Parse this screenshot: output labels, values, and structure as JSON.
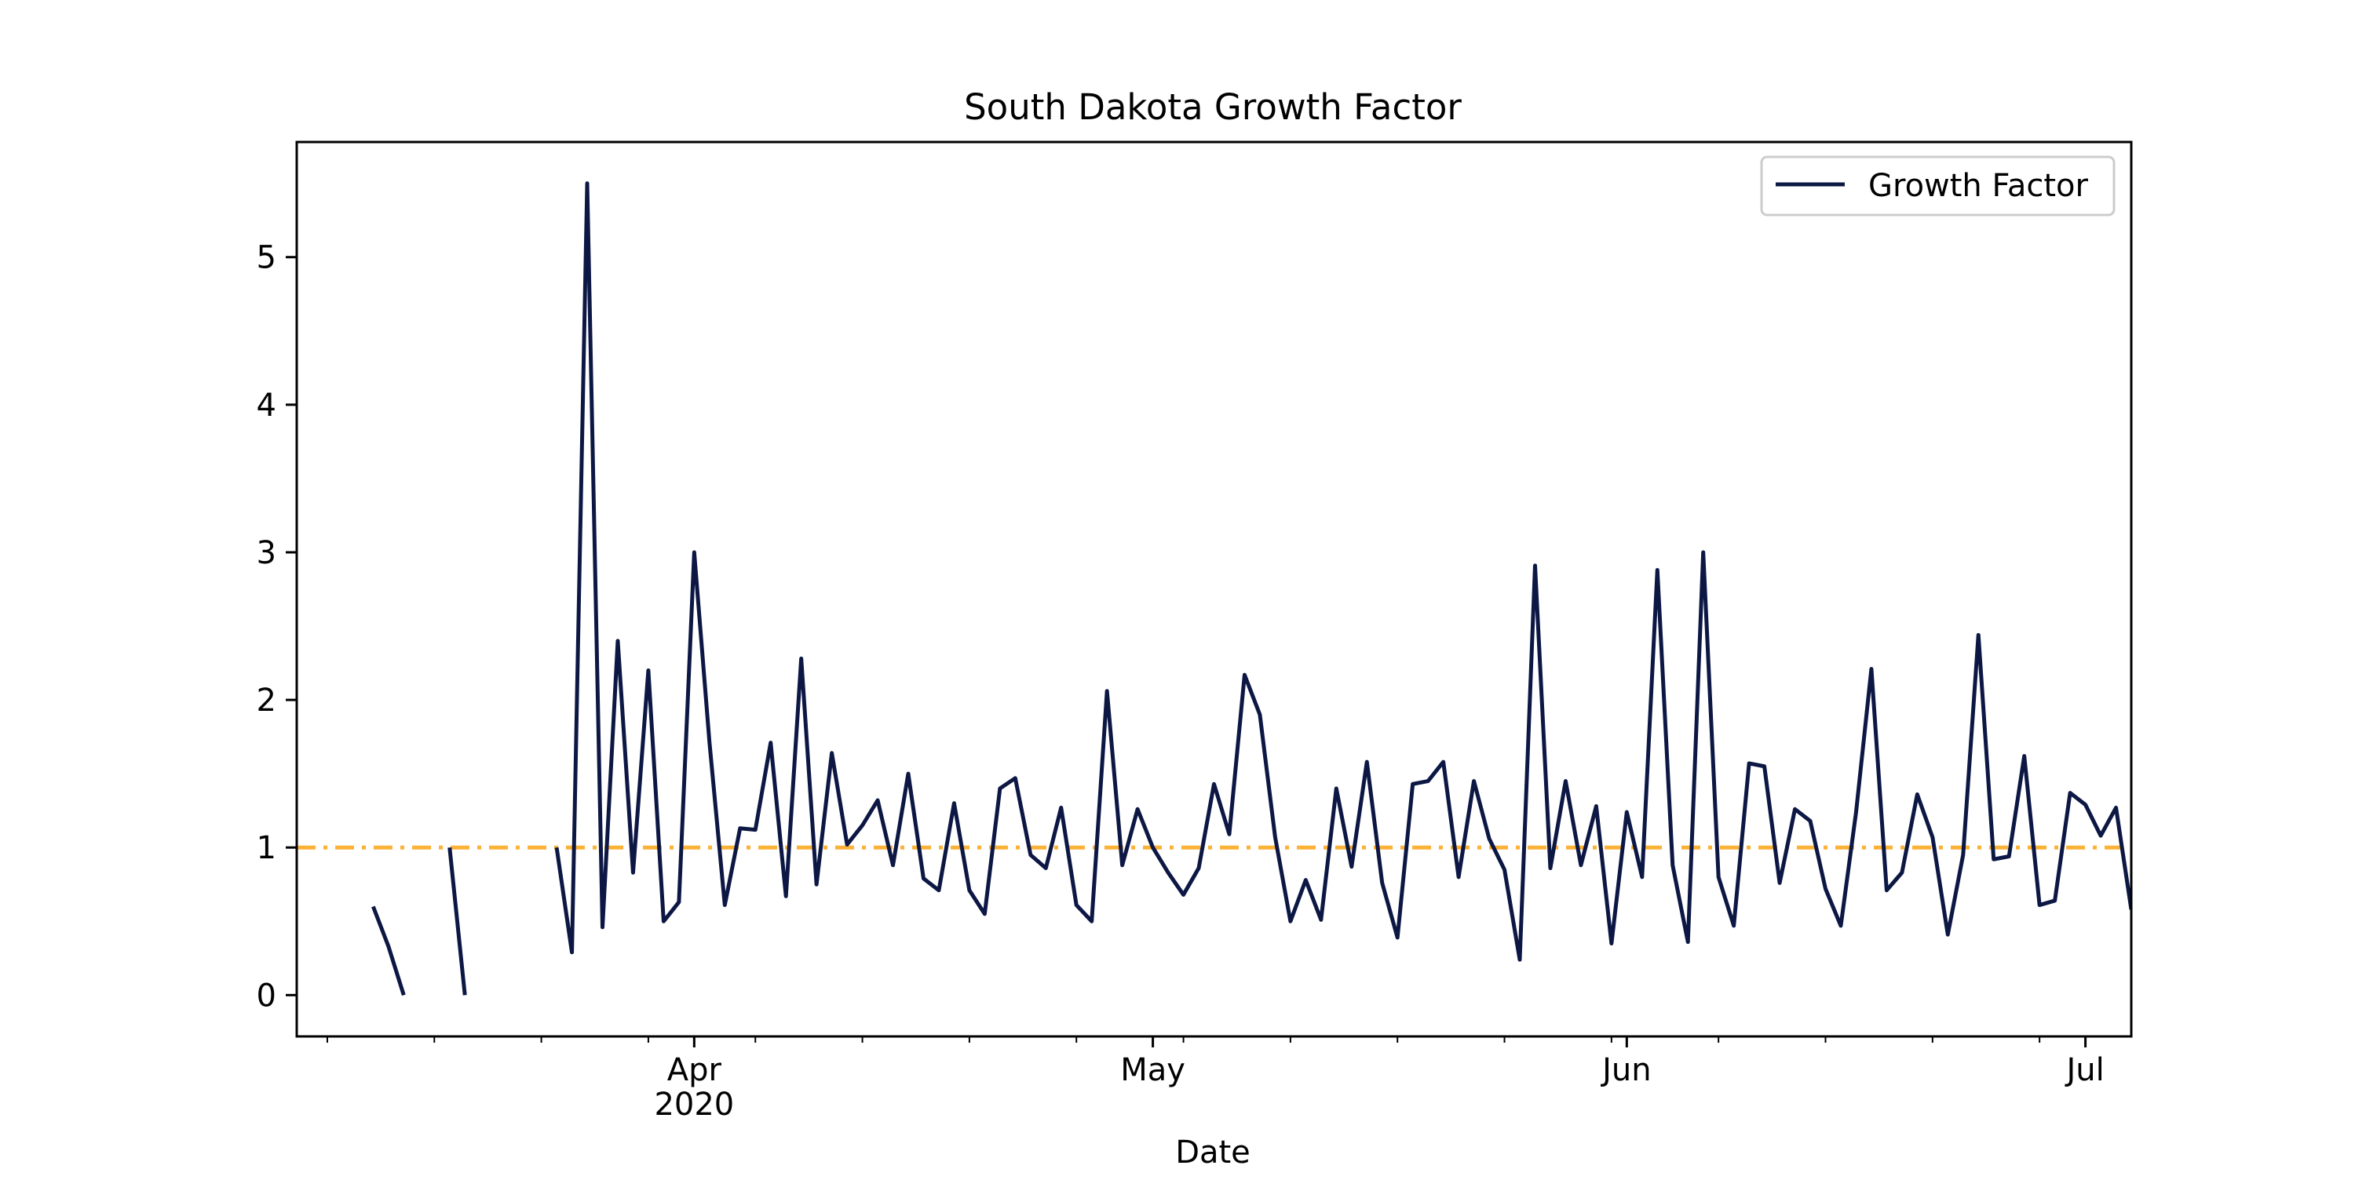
{
  "colors": {
    "series": "#0c1744",
    "reference": "#fbb237",
    "axis": "#000000",
    "background": "#ffffff"
  },
  "chart_data": {
    "type": "line",
    "title": "South Dakota Growth Factor",
    "xlabel": "Date",
    "ylabel": "",
    "xlim": [
      "2020-03-06",
      "2020-07-04"
    ],
    "ylim": [
      -0.28,
      5.78
    ],
    "grid": false,
    "legend": {
      "position": "top-right",
      "entries": [
        "Growth Factor"
      ]
    },
    "x_tick_labels": [
      {
        "date": "2020-04-01",
        "lines": [
          "Apr",
          "2020"
        ]
      },
      {
        "date": "2020-05-01",
        "lines": [
          "May"
        ]
      },
      {
        "date": "2020-06-01",
        "lines": [
          "Jun"
        ]
      },
      {
        "date": "2020-07-01",
        "lines": [
          "Jul"
        ]
      }
    ],
    "x_minor_ticks": [
      "2020-03-08",
      "2020-03-15",
      "2020-03-22",
      "2020-03-29",
      "2020-04-05",
      "2020-04-12",
      "2020-04-19",
      "2020-04-26",
      "2020-05-03",
      "2020-05-10",
      "2020-05-17",
      "2020-05-24",
      "2020-05-31",
      "2020-06-07",
      "2020-06-14",
      "2020-06-21",
      "2020-06-28"
    ],
    "y_ticks": [
      0,
      1,
      2,
      3,
      4,
      5
    ],
    "reference_line": {
      "y": 1.0,
      "style": "dash-dot"
    },
    "series": [
      {
        "name": "Growth Factor",
        "start_date": "2020-03-11",
        "values": [
          0.6,
          0.33,
          0.0,
          null,
          null,
          1.0,
          0.0,
          null,
          null,
          null,
          null,
          null,
          1.0,
          0.29,
          5.5,
          0.46,
          2.4,
          0.83,
          2.2,
          0.5,
          0.63,
          3.0,
          1.71,
          0.61,
          1.13,
          1.12,
          1.71,
          0.67,
          2.28,
          0.75,
          1.64,
          1.02,
          1.15,
          1.32,
          0.88,
          1.5,
          0.79,
          0.71,
          1.3,
          0.71,
          0.55,
          1.4,
          1.47,
          0.95,
          0.86,
          1.27,
          0.61,
          0.5,
          2.06,
          0.88,
          1.26,
          1.0,
          0.83,
          0.68,
          0.86,
          1.43,
          1.09,
          2.17,
          1.9,
          1.07,
          0.5,
          0.78,
          0.51,
          1.4,
          0.87,
          1.58,
          0.76,
          0.39,
          1.43,
          1.45,
          1.58,
          0.8,
          1.45,
          1.06,
          0.85,
          0.24,
          2.91,
          0.86,
          1.45,
          0.88,
          1.28,
          0.35,
          1.24,
          0.8,
          2.88,
          0.88,
          0.36,
          3.0,
          0.8,
          0.47,
          1.57,
          1.55,
          0.76,
          1.26,
          1.18,
          0.72,
          0.47,
          1.24,
          2.21,
          0.71,
          0.83,
          1.36,
          1.07,
          0.41,
          0.95,
          2.44,
          0.92,
          0.94,
          1.62,
          0.61,
          0.64,
          1.37,
          1.29,
          1.08,
          1.27,
          0.58
        ]
      }
    ]
  }
}
